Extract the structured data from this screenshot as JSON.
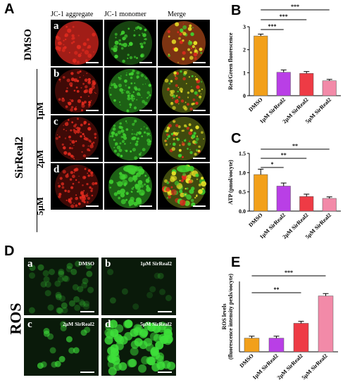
{
  "panelA": {
    "label": "A",
    "col_headers": [
      "JC-1 aggregate",
      "JC-1 monomer",
      "Merge"
    ],
    "row_labels": [
      "DMSO",
      "1μM",
      "2μM",
      "5μM"
    ],
    "group_label": "SirReal2",
    "sub_letters": [
      "a",
      "b",
      "c",
      "d"
    ]
  },
  "panelD": {
    "label": "D",
    "side_label": "ROS",
    "cells": [
      {
        "letter": "a",
        "label": "DMSO"
      },
      {
        "letter": "b",
        "label": "1μM SirReal2"
      },
      {
        "letter": "c",
        "label": "2μM SirReal2"
      },
      {
        "letter": "d",
        "label": "5μM SirReal2"
      }
    ]
  },
  "colors": {
    "dmso": "#f2a01a",
    "c1": "#b93fe6",
    "c2": "#ee3b45",
    "c5": "#f28aa8",
    "red_signal": "#e02a1e",
    "green_signal": "#3fcf2f"
  },
  "chart_data": [
    {
      "panel": "B",
      "type": "bar",
      "ylabel": "Red/Green fluorescence",
      "categories": [
        "DMSO",
        "1μM SirReal2",
        "2μM SirReal2",
        "5μM SirReal2"
      ],
      "values": [
        2.6,
        1.02,
        0.97,
        0.65
      ],
      "errors": [
        0.08,
        0.1,
        0.08,
        0.06
      ],
      "ylim": [
        0,
        3
      ],
      "yticks": [
        0,
        1,
        2,
        3
      ],
      "significance": [
        {
          "from": 0,
          "to": 1,
          "label": "***"
        },
        {
          "from": 0,
          "to": 2,
          "label": "***"
        },
        {
          "from": 0,
          "to": 3,
          "label": "***"
        }
      ]
    },
    {
      "panel": "C",
      "type": "bar",
      "ylabel": "ATP (pmol/oocyte)",
      "categories": [
        "DMSO",
        "1μM SirReal2",
        "2μM SirReal2",
        "5μM SirReal2"
      ],
      "values": [
        0.95,
        0.65,
        0.38,
        0.33
      ],
      "errors": [
        0.14,
        0.08,
        0.06,
        0.04
      ],
      "ylim": [
        0,
        1.5
      ],
      "yticks": [
        0.0,
        0.5,
        1.0,
        1.5
      ],
      "significance": [
        {
          "from": 0,
          "to": 1,
          "label": "*"
        },
        {
          "from": 0,
          "to": 2,
          "label": "**"
        },
        {
          "from": 0,
          "to": 3,
          "label": "**"
        }
      ]
    },
    {
      "panel": "E",
      "type": "bar",
      "ylabel": "ROS levels\n(fluorescence intensity pexls/oocyte)",
      "categories": [
        "DMSO",
        "1μM SirReal2",
        "2μM SirReal2",
        "5μM SirReal2"
      ],
      "values": [
        35,
        35,
        73,
        143
      ],
      "errors": [
        5,
        5,
        5,
        6
      ],
      "ylim": [
        0,
        180
      ],
      "yticks": [],
      "significance": [
        {
          "from": 0,
          "to": 2,
          "label": "**"
        },
        {
          "from": 0,
          "to": 3,
          "label": "***"
        }
      ]
    }
  ]
}
